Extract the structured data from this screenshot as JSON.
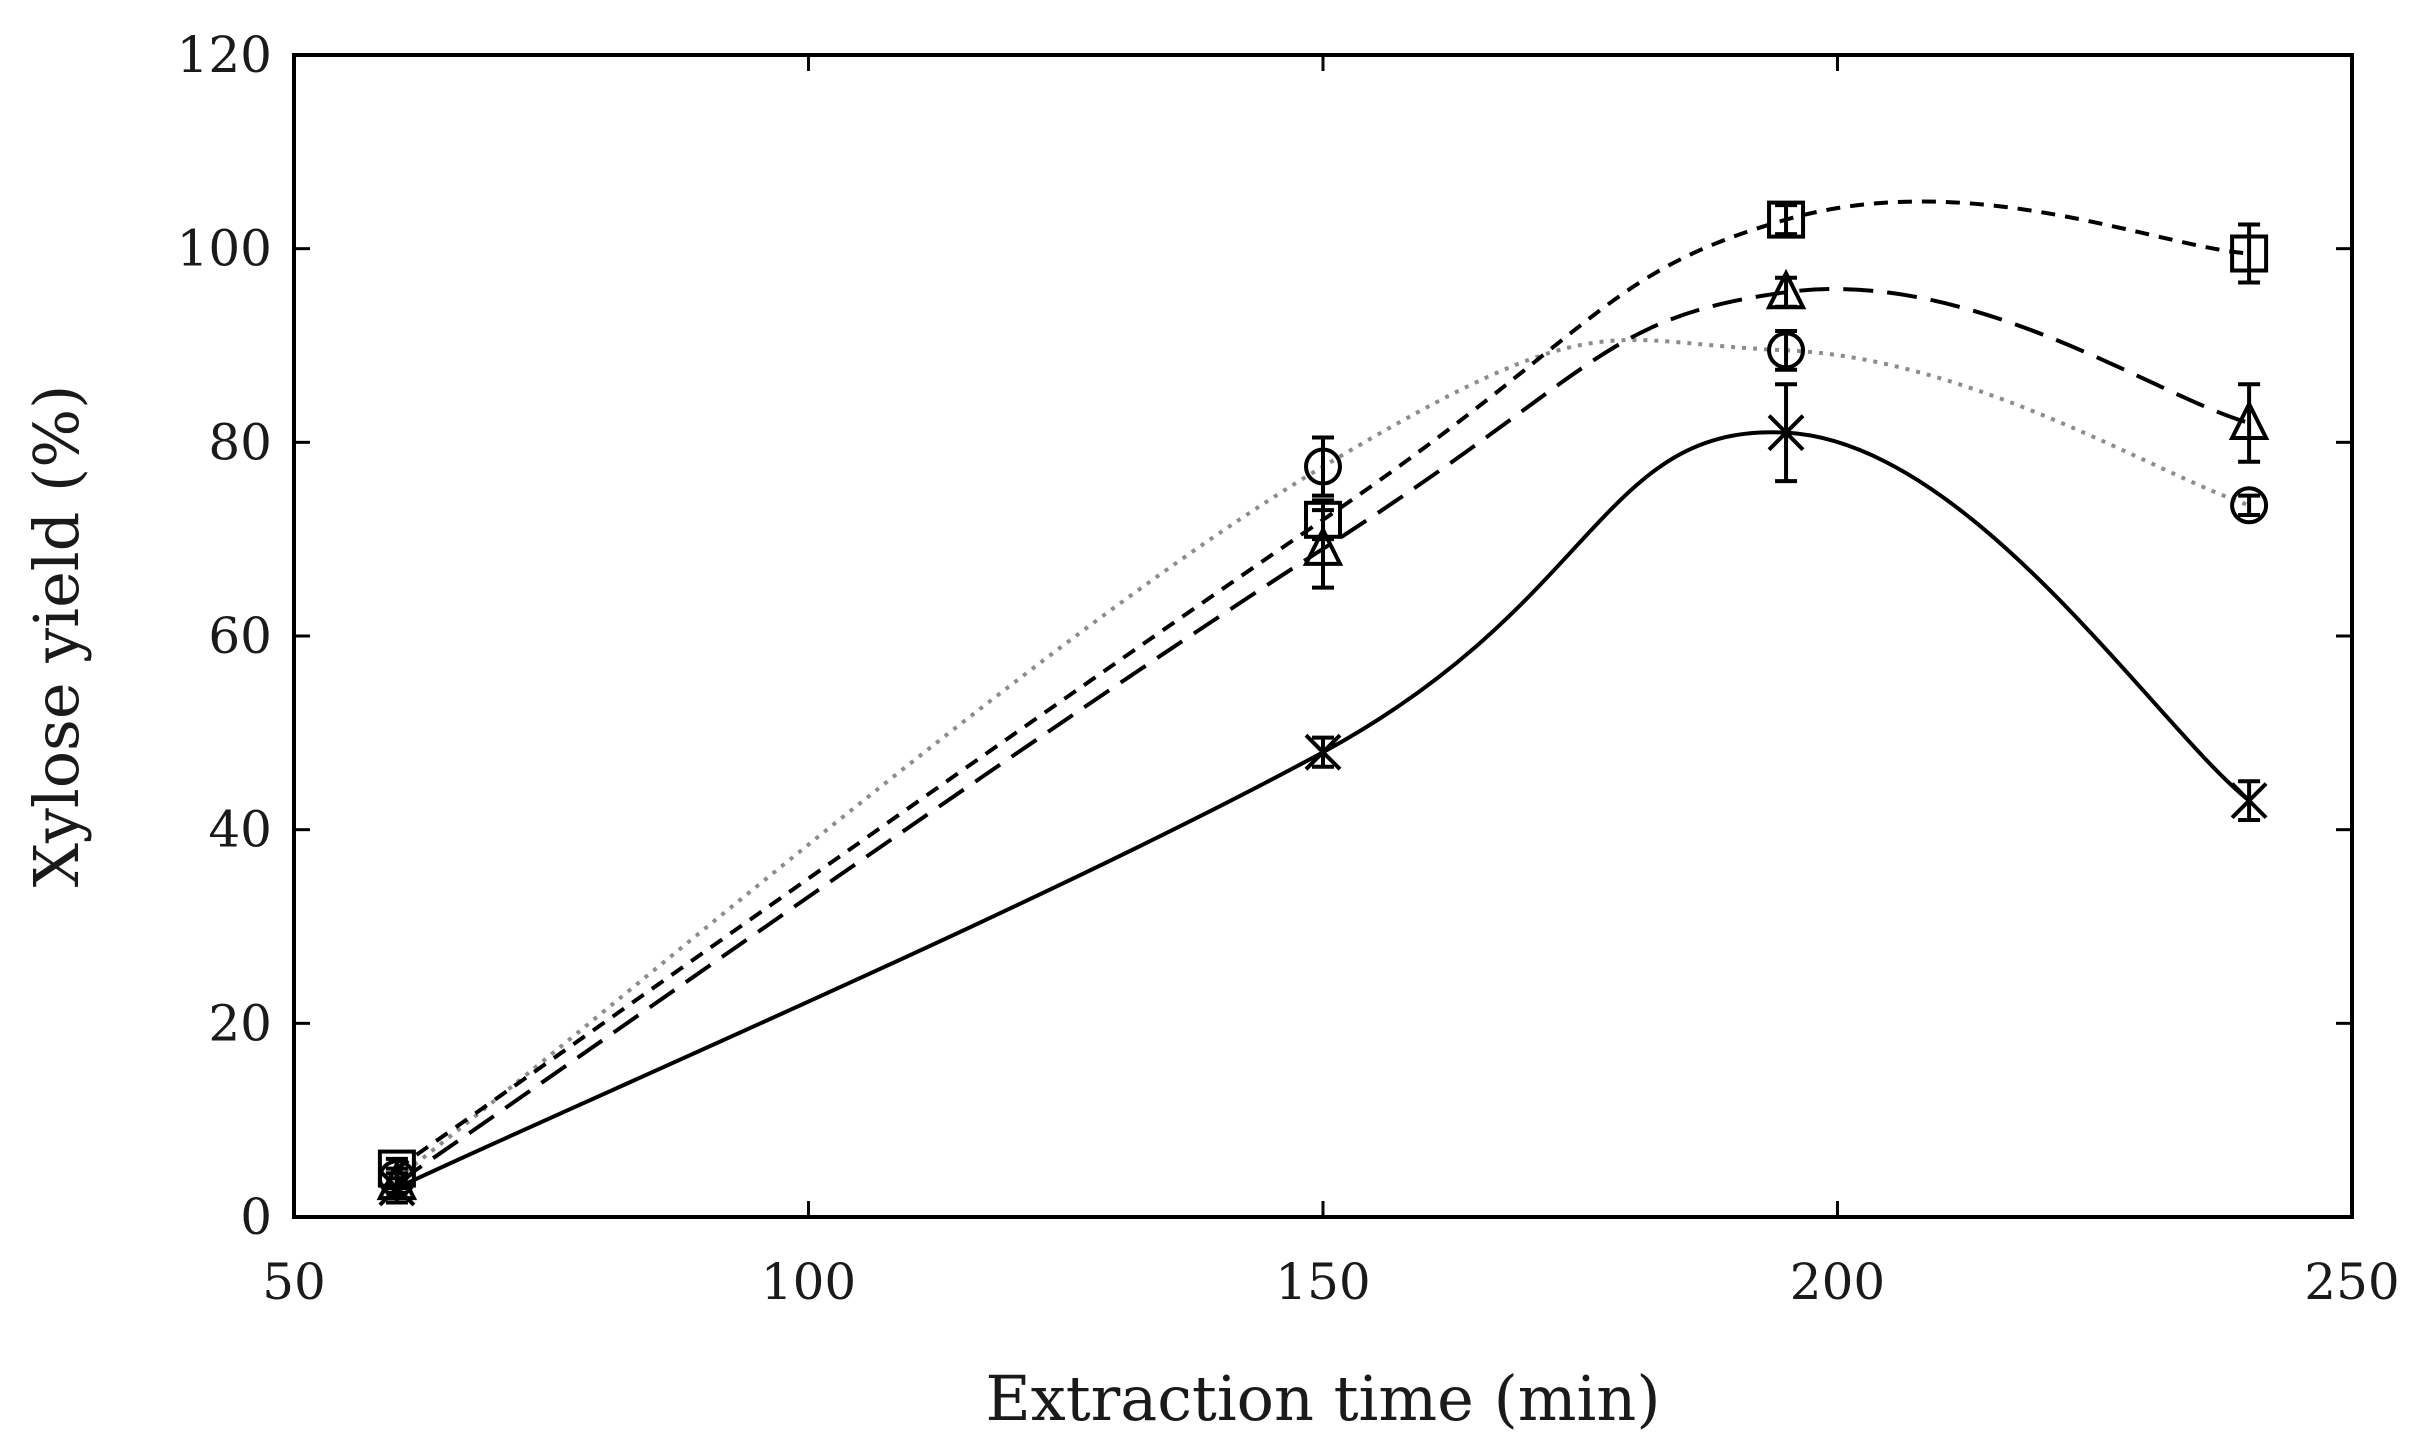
{
  "chart_data": {
    "type": "line",
    "title": "",
    "xlabel": "Extraction time (min)",
    "ylabel": "Xylose yield (%)",
    "xlim": [
      50,
      250
    ],
    "ylim": [
      0,
      120
    ],
    "xticks": [
      50,
      100,
      150,
      200,
      250
    ],
    "yticks": [
      0,
      20,
      40,
      60,
      80,
      100,
      120
    ],
    "grid": false,
    "legend": "none",
    "x": [
      60,
      150,
      195,
      240
    ],
    "series": [
      {
        "name": "cross",
        "marker": "x",
        "line": "solid",
        "color": "#000000",
        "values": [
          3,
          48,
          81,
          43
        ],
        "errors": [
          1.5,
          1.5,
          5,
          2
        ]
      },
      {
        "name": "circle",
        "marker": "o",
        "line": "dotted",
        "color": "#8c8c8c",
        "values": [
          4,
          77.5,
          89.5,
          73.5
        ],
        "errors": [
          1,
          3,
          2,
          1
        ]
      },
      {
        "name": "triangle",
        "marker": "triangle",
        "line": "long-dash",
        "color": "#000000",
        "values": [
          3.5,
          69,
          95.5,
          82
        ],
        "errors": [
          1,
          4,
          1.5,
          4
        ]
      },
      {
        "name": "square",
        "marker": "square",
        "line": "short-dash",
        "color": "#000000",
        "values": [
          5,
          72,
          103,
          99.5
        ],
        "errors": [
          1,
          2,
          1.5,
          3
        ]
      }
    ]
  }
}
